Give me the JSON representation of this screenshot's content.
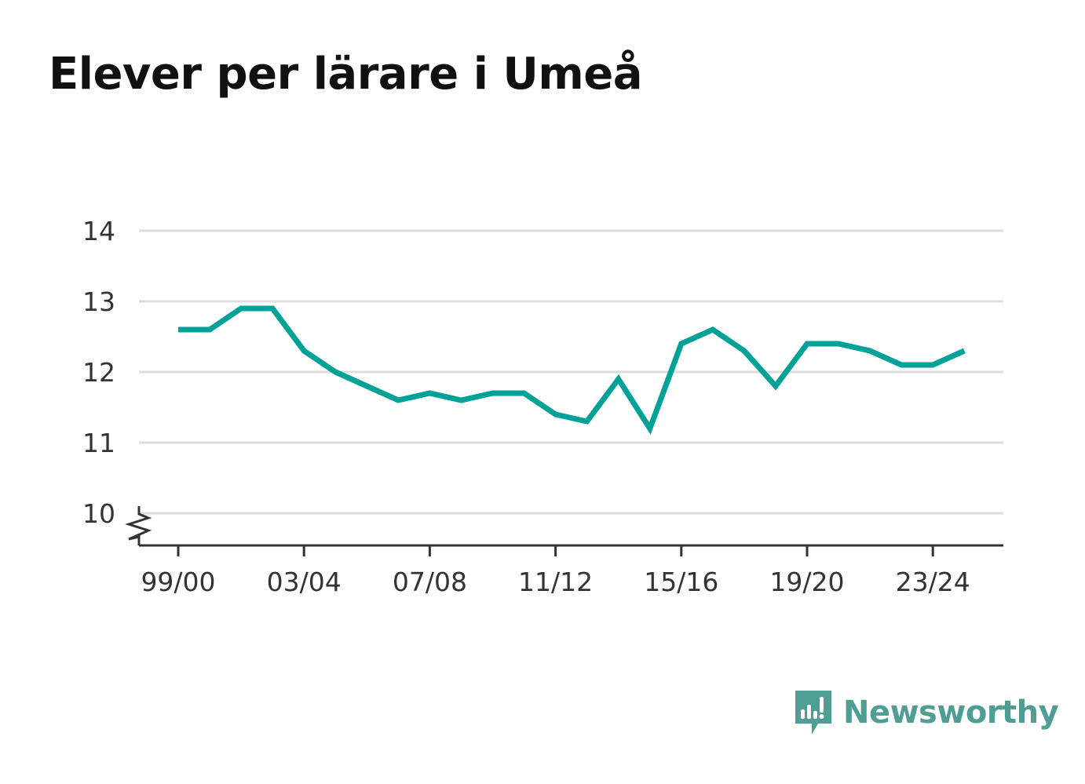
{
  "title": "Elever per lärare i Umeå",
  "brand": {
    "name": "Newsworthy",
    "icon": "newsworthy-logo-icon",
    "color": "#4e9e94"
  },
  "chart_data": {
    "type": "line",
    "title": "Elever per lärare i Umeå",
    "xlabel": "",
    "ylabel": "",
    "x": [
      "99/00",
      "00/01",
      "01/02",
      "02/03",
      "03/04",
      "04/05",
      "05/06",
      "06/07",
      "07/08",
      "08/09",
      "09/10",
      "10/11",
      "11/12",
      "12/13",
      "13/14",
      "14/15",
      "15/16",
      "16/17",
      "17/18",
      "18/19",
      "19/20",
      "20/21",
      "21/22",
      "22/23",
      "23/24",
      "24/25"
    ],
    "x_tick_labels": [
      "99/00",
      "03/04",
      "07/08",
      "11/12",
      "15/16",
      "19/20",
      "23/24"
    ],
    "series": [
      {
        "values": [
          12.6,
          12.6,
          12.9,
          12.9,
          12.3,
          12.0,
          11.8,
          11.6,
          11.7,
          11.6,
          11.7,
          11.7,
          11.4,
          11.3,
          11.9,
          11.2,
          12.4,
          12.6,
          12.3,
          11.8,
          12.4,
          12.4,
          12.3,
          12.1,
          12.1,
          12.3
        ],
        "color": "#00a197"
      }
    ],
    "y_ticks": [
      10,
      11,
      12,
      13,
      14
    ],
    "ylim": [
      10,
      14
    ],
    "y_axis_break": true,
    "grid": true,
    "gridline_color": "#dddddd",
    "axis_color": "#333333"
  }
}
